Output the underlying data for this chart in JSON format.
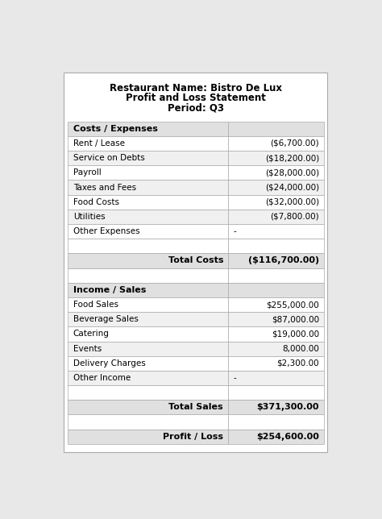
{
  "title_line1": "Restaurant Name: Bistro De Lux",
  "title_line2": "Profit and Loss Statement",
  "title_line3": "Period: Q3",
  "costs_header": "Costs / Expenses",
  "cost_rows": [
    [
      "Rent / Lease",
      "($6,700.00)"
    ],
    [
      "Service on Debts",
      "($18,200.00)"
    ],
    [
      "Payroll",
      "($28,000.00)"
    ],
    [
      "Taxes and Fees",
      "($24,000.00)"
    ],
    [
      "Food Costs",
      "($32,000.00)"
    ],
    [
      "Utilities",
      "($7,800.00)"
    ],
    [
      "Other Expenses",
      "-"
    ]
  ],
  "total_costs_label": "Total Costs",
  "total_costs_value": "($116,700.00)",
  "sales_header": "Income / Sales",
  "sales_rows": [
    [
      "Food Sales",
      "$255,000.00"
    ],
    [
      "Beverage Sales",
      "$87,000.00"
    ],
    [
      "Catering",
      "$19,000.00"
    ],
    [
      "Events",
      "8,000.00"
    ],
    [
      "Delivery Charges",
      "$2,300.00"
    ],
    [
      "Other Income",
      "-"
    ]
  ],
  "total_sales_label": "Total Sales",
  "total_sales_value": "$371,300.00",
  "profit_loss_label": "Profit / Loss",
  "profit_loss_value": "$254,600.00",
  "page_bg": "#e8e8e8",
  "white_bg": "#ffffff",
  "header_row_bg": "#e0e0e0",
  "alt_row_bg": "#f0f0f0",
  "border_color": "#aaaaaa",
  "text_color": "#000000",
  "font_size": 7.5,
  "header_font_size": 8.0,
  "title_font_size": 8.5,
  "fig_width": 4.74,
  "fig_height": 6.44,
  "dpi": 100
}
